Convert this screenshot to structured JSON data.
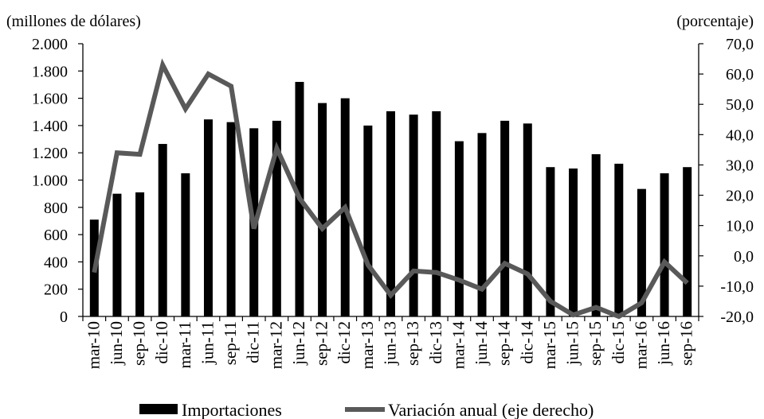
{
  "chart_data": {
    "type": "bar",
    "left_unit": "(millones  de dólares)",
    "right_unit": "(porcentaje)",
    "categories": [
      "mar-10",
      "jun-10",
      "sep-10",
      "dic-10",
      "mar-11",
      "jun-11",
      "sep-11",
      "dic-11",
      "mar-12",
      "jun-12",
      "sep-12",
      "dic-12",
      "mar-13",
      "jun-13",
      "sep-13",
      "dic-13",
      "mar-14",
      "jun-14",
      "sep-14",
      "dic-14",
      "mar-15",
      "jun-15",
      "sep-15",
      "dic-15",
      "mar-16",
      "jun-16",
      "sep-16"
    ],
    "left_axis": {
      "ylim": [
        0,
        2000
      ],
      "ticks": [
        0,
        200,
        400,
        600,
        800,
        1000,
        1200,
        1400,
        1600,
        1800,
        2000
      ],
      "tick_labels": [
        "0",
        "200",
        "400",
        "600",
        "800",
        "1.000",
        "1.200",
        "1.400",
        "1.600",
        "1.800",
        "2.000"
      ]
    },
    "right_axis": {
      "ylim": [
        -20,
        70
      ],
      "ticks": [
        -20,
        -10,
        0,
        10,
        20,
        30,
        40,
        50,
        60,
        70
      ],
      "tick_labels": [
        "-20,0",
        "-10,0",
        "0,0",
        "10,0",
        "20,0",
        "30,0",
        "40,0",
        "50,0",
        "60,0",
        "70,0"
      ]
    },
    "series": [
      {
        "name": "Importaciones",
        "type": "bar",
        "axis": "left",
        "color": "#000000",
        "values": [
          710,
          900,
          910,
          1265,
          1050,
          1445,
          1425,
          1380,
          1435,
          1720,
          1565,
          1600,
          1400,
          1505,
          1480,
          1505,
          1285,
          1345,
          1435,
          1415,
          1095,
          1085,
          1190,
          1120,
          935,
          1050,
          1095
        ]
      },
      {
        "name": "Variación anual (eje derecho)",
        "type": "line",
        "axis": "right",
        "color": "#595959",
        "values": [
          -5.5,
          34,
          33.5,
          63,
          48.5,
          60,
          56,
          9,
          35.5,
          19,
          9,
          16,
          -3,
          -13,
          -5,
          -5.5,
          -8,
          -11,
          -2.5,
          -6,
          -15,
          -19.5,
          -17,
          -20,
          -15.5,
          -2,
          -9
        ]
      }
    ],
    "legend": {
      "placement": "bottom"
    },
    "grid": false
  }
}
